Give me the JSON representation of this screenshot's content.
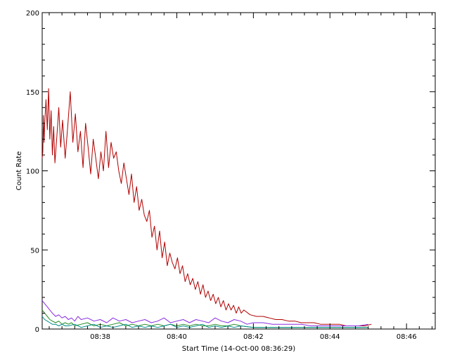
{
  "chart_data": {
    "type": "line",
    "title": "",
    "xlabel": "Start Time (14-Oct-00 08:36:29)",
    "ylabel": "Count Rate",
    "x_unit": "time (HH:MM)",
    "xlim": [
      "08:36:29",
      "08:46:45"
    ],
    "ylim": [
      0,
      200
    ],
    "x_ticks": [
      "08:38",
      "08:40",
      "08:42",
      "08:44",
      "08:46"
    ],
    "y_ticks": [
      "0",
      "50",
      "100",
      "150",
      "200"
    ],
    "grid": false,
    "legend": "none",
    "series": [
      {
        "color": "#b00000",
        "x": [
          "08:36:29",
          "08:36:30",
          "08:36:31",
          "08:36:32",
          "08:36:33",
          "08:36:35",
          "08:36:37",
          "08:36:39",
          "08:36:41",
          "08:36:43",
          "08:36:45",
          "08:36:47",
          "08:36:49",
          "08:36:52",
          "08:36:55",
          "08:36:58",
          "08:37:01",
          "08:37:05",
          "08:37:09",
          "08:37:13",
          "08:37:17",
          "08:37:21",
          "08:37:25",
          "08:37:29",
          "08:37:33",
          "08:37:37",
          "08:37:41",
          "08:37:45",
          "08:37:49",
          "08:37:53",
          "08:37:57",
          "08:38:01",
          "08:38:05",
          "08:38:09",
          "08:38:13",
          "08:38:17",
          "08:38:21",
          "08:38:25",
          "08:38:29",
          "08:38:33",
          "08:38:37",
          "08:38:41",
          "08:38:45",
          "08:38:49",
          "08:38:53",
          "08:38:57",
          "08:39:01",
          "08:39:05",
          "08:39:09",
          "08:39:13",
          "08:39:17",
          "08:39:21",
          "08:39:25",
          "08:39:29",
          "08:39:33",
          "08:39:37",
          "08:39:41",
          "08:39:45",
          "08:39:49",
          "08:39:53",
          "08:39:57",
          "08:40:01",
          "08:40:05",
          "08:40:09",
          "08:40:13",
          "08:40:17",
          "08:40:21",
          "08:40:25",
          "08:40:29",
          "08:40:33",
          "08:40:37",
          "08:40:41",
          "08:40:45",
          "08:40:49",
          "08:40:53",
          "08:40:57",
          "08:41:01",
          "08:41:05",
          "08:41:09",
          "08:41:13",
          "08:41:17",
          "08:41:21",
          "08:41:25",
          "08:41:29",
          "08:41:33",
          "08:41:37",
          "08:41:41",
          "08:41:45",
          "08:41:55",
          "08:42:05",
          "08:42:15",
          "08:42:25",
          "08:42:35",
          "08:42:45",
          "08:42:55",
          "08:43:05",
          "08:43:15",
          "08:43:25",
          "08:43:35",
          "08:43:45",
          "08:43:55",
          "08:44:05",
          "08:44:15",
          "08:44:25",
          "08:44:35",
          "08:44:45",
          "08:44:55",
          "08:45:05"
        ],
        "y": [
          108,
          112,
          135,
          118,
          130,
          145,
          126,
          152,
          120,
          138,
          110,
          128,
          105,
          122,
          140,
          115,
          132,
          108,
          128,
          150,
          118,
          136,
          112,
          125,
          102,
          130,
          115,
          98,
          120,
          108,
          95,
          112,
          100,
          125,
          102,
          118,
          108,
          112,
          100,
          92,
          105,
          95,
          85,
          98,
          80,
          90,
          75,
          82,
          72,
          68,
          75,
          58,
          65,
          50,
          62,
          45,
          55,
          40,
          48,
          42,
          38,
          45,
          35,
          40,
          30,
          35,
          28,
          32,
          25,
          30,
          22,
          28,
          20,
          24,
          18,
          22,
          16,
          20,
          14,
          18,
          12,
          16,
          12,
          15,
          10,
          14,
          10,
          12,
          9,
          8,
          8,
          7,
          6,
          6,
          5,
          5,
          4,
          4,
          4,
          3,
          3,
          3,
          3,
          2,
          2,
          2,
          2,
          3
        ]
      },
      {
        "color": "#8a2be2",
        "x": [
          "08:36:29",
          "08:36:33",
          "08:36:37",
          "08:36:41",
          "08:36:45",
          "08:36:50",
          "08:36:55",
          "08:37:00",
          "08:37:05",
          "08:37:10",
          "08:37:15",
          "08:37:20",
          "08:37:25",
          "08:37:30",
          "08:37:40",
          "08:37:50",
          "08:38:00",
          "08:38:10",
          "08:38:20",
          "08:38:30",
          "08:38:40",
          "08:38:50",
          "08:39:00",
          "08:39:10",
          "08:39:20",
          "08:39:30",
          "08:39:40",
          "08:39:50",
          "08:40:00",
          "08:40:10",
          "08:40:20",
          "08:40:30",
          "08:40:40",
          "08:40:50",
          "08:41:00",
          "08:41:10",
          "08:41:20",
          "08:41:30",
          "08:41:40",
          "08:41:50",
          "08:42:00",
          "08:42:15",
          "08:42:30",
          "08:42:45",
          "08:43:00",
          "08:43:15",
          "08:43:30",
          "08:43:45",
          "08:44:00",
          "08:44:15",
          "08:44:30",
          "08:44:45",
          "08:45:00"
        ],
        "y": [
          18,
          16,
          14,
          12,
          10,
          8,
          9,
          7,
          8,
          6,
          7,
          5,
          8,
          6,
          7,
          5,
          6,
          4,
          7,
          5,
          6,
          4,
          5,
          6,
          4,
          5,
          7,
          4,
          5,
          6,
          4,
          6,
          5,
          4,
          7,
          5,
          4,
          6,
          5,
          3,
          4,
          4,
          3,
          3,
          3,
          3,
          2,
          2,
          2,
          2,
          2,
          2,
          3
        ]
      },
      {
        "color": "#228b22",
        "x": [
          "08:36:29",
          "08:36:33",
          "08:36:37",
          "08:36:41",
          "08:36:45",
          "08:36:50",
          "08:36:55",
          "08:37:00",
          "08:37:05",
          "08:37:10",
          "08:37:15",
          "08:37:20",
          "08:37:30",
          "08:37:40",
          "08:37:50",
          "08:38:00",
          "08:38:10",
          "08:38:20",
          "08:38:30",
          "08:38:40",
          "08:38:50",
          "08:39:00",
          "08:39:10",
          "08:39:20",
          "08:39:30",
          "08:39:40",
          "08:39:50",
          "08:40:00",
          "08:40:10",
          "08:40:20",
          "08:40:30",
          "08:40:40",
          "08:40:50",
          "08:41:00",
          "08:41:10",
          "08:41:20",
          "08:41:30",
          "08:41:40",
          "08:42:00",
          "08:42:30",
          "08:43:00",
          "08:43:30",
          "08:44:00",
          "08:44:30",
          "08:45:00"
        ],
        "y": [
          12,
          10,
          8,
          6,
          5,
          4,
          5,
          3,
          4,
          3,
          4,
          2,
          3,
          4,
          2,
          3,
          2,
          3,
          4,
          2,
          3,
          2,
          3,
          2,
          3,
          2,
          3,
          2,
          3,
          2,
          3,
          2,
          2,
          3,
          2,
          2,
          3,
          2,
          1,
          1,
          1,
          1,
          1,
          1,
          1
        ]
      },
      {
        "color": "#008b8b",
        "x": [
          "08:36:29",
          "08:36:33",
          "08:36:37",
          "08:36:41",
          "08:36:45",
          "08:36:50",
          "08:36:55",
          "08:37:00",
          "08:37:05",
          "08:37:10",
          "08:37:20",
          "08:37:30",
          "08:37:40",
          "08:37:50",
          "08:38:00",
          "08:38:10",
          "08:38:20",
          "08:38:30",
          "08:38:40",
          "08:38:50",
          "08:39:00",
          "08:39:10",
          "08:39:20",
          "08:39:30",
          "08:39:40",
          "08:39:50",
          "08:40:00",
          "08:40:10",
          "08:40:20",
          "08:40:30",
          "08:40:40",
          "08:40:50",
          "08:41:00",
          "08:41:10",
          "08:41:20",
          "08:41:30",
          "08:41:40",
          "08:42:00",
          "08:42:30",
          "08:43:00",
          "08:43:30",
          "08:44:00",
          "08:44:30",
          "08:45:00"
        ],
        "y": [
          8,
          6,
          5,
          4,
          3,
          3,
          2,
          3,
          2,
          2,
          3,
          1,
          2,
          3,
          1,
          2,
          1,
          2,
          3,
          1,
          2,
          1,
          2,
          1,
          2,
          3,
          1,
          2,
          1,
          2,
          3,
          1,
          2,
          1,
          2,
          1,
          2,
          1,
          1,
          1,
          1,
          1,
          1,
          1
        ]
      }
    ]
  }
}
